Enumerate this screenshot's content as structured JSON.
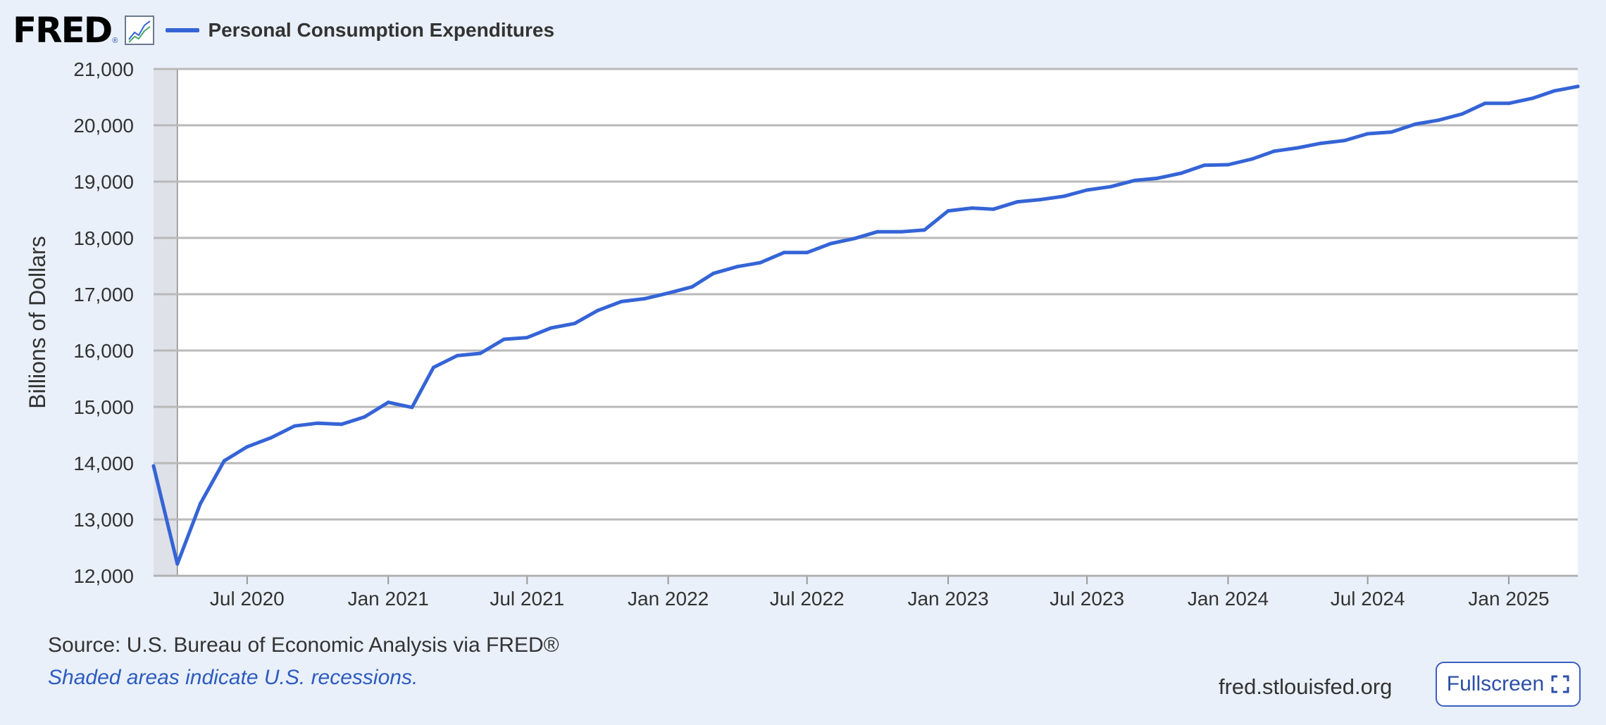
{
  "header": {
    "logo": "FRED",
    "logo_reg": "®",
    "legend_label": "Personal Consumption Expenditures"
  },
  "colors": {
    "series": "#3564d6",
    "background": "#e9f0fa",
    "plot_background": "#ffffff",
    "recession_shade": "#dfe1e8",
    "gridline": "#b9b9b9"
  },
  "icons": {
    "graph": "line-graph-icon",
    "fullscreen": "expand-icon"
  },
  "chart_data": {
    "type": "line",
    "title": "",
    "xlabel": "",
    "ylabel": "Billions of Dollars",
    "ylim": [
      12000,
      21000
    ],
    "xlim": [
      "2020-03-01",
      "2025-04-01"
    ],
    "yticks": [
      12000,
      13000,
      14000,
      15000,
      16000,
      17000,
      18000,
      19000,
      20000,
      21000
    ],
    "ytick_labels": [
      "12,000",
      "13,000",
      "14,000",
      "15,000",
      "16,000",
      "17,000",
      "18,000",
      "19,000",
      "20,000",
      "21,000"
    ],
    "xticks": [
      "2020-07-01",
      "2021-01-01",
      "2021-07-01",
      "2022-01-01",
      "2022-07-01",
      "2023-01-01",
      "2023-07-01",
      "2024-01-01",
      "2024-07-01",
      "2025-01-01"
    ],
    "xtick_labels": [
      "Jul 2020",
      "Jan 2021",
      "Jul 2021",
      "Jan 2022",
      "Jul 2022",
      "Jan 2023",
      "Jul 2023",
      "Jan 2024",
      "Jul 2024",
      "Jan 2025"
    ],
    "grid": true,
    "recessions": [
      [
        "2020-03-01",
        "2020-04-01"
      ]
    ],
    "series": [
      {
        "name": "Personal Consumption Expenditures",
        "x": [
          "2020-03-01",
          "2020-04-01",
          "2020-05-01",
          "2020-06-01",
          "2020-07-01",
          "2020-08-01",
          "2020-09-01",
          "2020-10-01",
          "2020-11-01",
          "2020-12-01",
          "2021-01-01",
          "2021-02-01",
          "2021-03-01",
          "2021-04-01",
          "2021-05-01",
          "2021-06-01",
          "2021-07-01",
          "2021-08-01",
          "2021-09-01",
          "2021-10-01",
          "2021-11-01",
          "2021-12-01",
          "2022-01-01",
          "2022-02-01",
          "2022-03-01",
          "2022-04-01",
          "2022-05-01",
          "2022-06-01",
          "2022-07-01",
          "2022-08-01",
          "2022-09-01",
          "2022-10-01",
          "2022-11-01",
          "2022-12-01",
          "2023-01-01",
          "2023-02-01",
          "2023-03-01",
          "2023-04-01",
          "2023-05-01",
          "2023-06-01",
          "2023-07-01",
          "2023-08-01",
          "2023-09-01",
          "2023-10-01",
          "2023-11-01",
          "2023-12-01",
          "2024-01-01",
          "2024-02-01",
          "2024-03-01",
          "2024-04-01",
          "2024-05-01",
          "2024-06-01",
          "2024-07-01",
          "2024-08-01",
          "2024-09-01",
          "2024-10-01",
          "2024-11-01",
          "2024-12-01",
          "2025-01-01",
          "2025-02-01",
          "2025-03-01",
          "2025-04-01"
        ],
        "values": [
          13950,
          12210,
          13280,
          14040,
          14290,
          14450,
          14660,
          14710,
          14690,
          14820,
          15080,
          14990,
          15700,
          15910,
          15950,
          16200,
          16230,
          16400,
          16480,
          16710,
          16870,
          16920,
          17020,
          17130,
          17370,
          17490,
          17560,
          17740,
          17740,
          17900,
          17990,
          18110,
          18110,
          18140,
          18480,
          18530,
          18510,
          18640,
          18680,
          18740,
          18850,
          18910,
          19020,
          19060,
          19150,
          19290,
          19300,
          19400,
          19540,
          19600,
          19680,
          19730,
          19850,
          19880,
          20020,
          20090,
          20200,
          20390,
          20390,
          20480,
          20610,
          20690
        ]
      }
    ]
  },
  "footer": {
    "source": "Source: U.S. Bureau of Economic Analysis via FRED®",
    "note": "Shaded areas indicate U.S. recessions.",
    "site": "fred.stlouisfed.org",
    "fullscreen_label": "Fullscreen"
  }
}
